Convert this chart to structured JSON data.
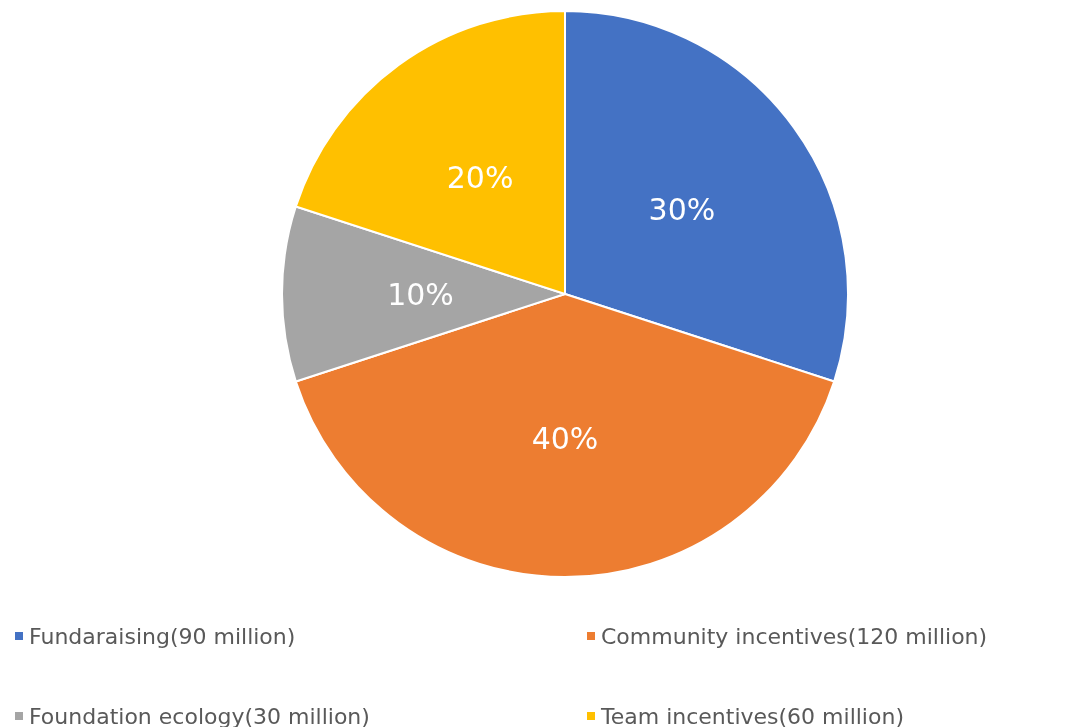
{
  "chart_data": {
    "type": "pie",
    "categories": [
      "Fundaraising(90 million)",
      "Community incentives(120 million)",
      "Foundation ecology(30 million)",
      "Team incentives(60 million)"
    ],
    "values": [
      30,
      40,
      10,
      20
    ],
    "colors": [
      "#4472c4",
      "#ed7d31",
      "#a5a5a5",
      "#ffc000"
    ],
    "value_labels": [
      "30%",
      "40%",
      "10%",
      "20%"
    ],
    "legend": "bottom"
  }
}
